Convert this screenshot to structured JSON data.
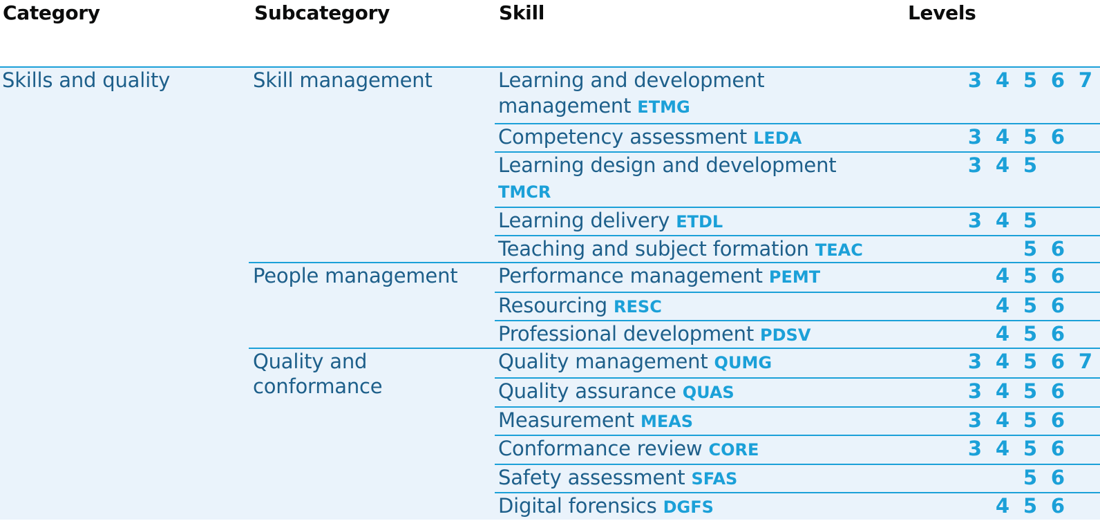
{
  "headers": {
    "category": "Category",
    "subcategory": "Subcategory",
    "skill": "Skill",
    "levels": "Levels"
  },
  "category": "Skills and quality",
  "subcategories": [
    {
      "name": "Skill management",
      "skills": [
        {
          "name": "Learning and development management",
          "code": "ETMG",
          "levels": [
            3,
            4,
            5,
            6,
            7
          ]
        },
        {
          "name": "Competency assessment",
          "code": "LEDA",
          "levels": [
            3,
            4,
            5,
            6
          ]
        },
        {
          "name": "Learning design and development",
          "code": "TMCR",
          "levels": [
            3,
            4,
            5
          ]
        },
        {
          "name": "Learning delivery",
          "code": "ETDL",
          "levels": [
            3,
            4,
            5
          ]
        },
        {
          "name": "Teaching and subject formation",
          "code": "TEAC",
          "levels": [
            5,
            6
          ]
        }
      ]
    },
    {
      "name": "People management",
      "skills": [
        {
          "name": "Performance management",
          "code": "PEMT",
          "levels": [
            4,
            5,
            6
          ]
        },
        {
          "name": "Resourcing",
          "code": "RESC",
          "levels": [
            4,
            5,
            6
          ]
        },
        {
          "name": "Professional development",
          "code": "PDSV",
          "levels": [
            4,
            5,
            6
          ]
        }
      ]
    },
    {
      "name": "Quality and conformance",
      "skills": [
        {
          "name": "Quality management",
          "code": "QUMG",
          "levels": [
            3,
            4,
            5,
            6,
            7
          ]
        },
        {
          "name": "Quality assurance",
          "code": "QUAS",
          "levels": [
            3,
            4,
            5,
            6
          ]
        },
        {
          "name": "Measurement",
          "code": "MEAS",
          "levels": [
            3,
            4,
            5,
            6
          ]
        },
        {
          "name": "Conformance review",
          "code": "CORE",
          "levels": [
            3,
            4,
            5,
            6
          ]
        },
        {
          "name": "Safety assessment",
          "code": "SFAS",
          "levels": [
            5,
            6
          ]
        },
        {
          "name": "Digital forensics",
          "code": "DGFS",
          "levels": [
            4,
            5,
            6
          ]
        }
      ]
    }
  ],
  "colors": {
    "accent": "#1ba0d8",
    "text": "#1d5f8a",
    "header_text": "#0b0c0c",
    "body_bg": "#eaf3fb"
  }
}
